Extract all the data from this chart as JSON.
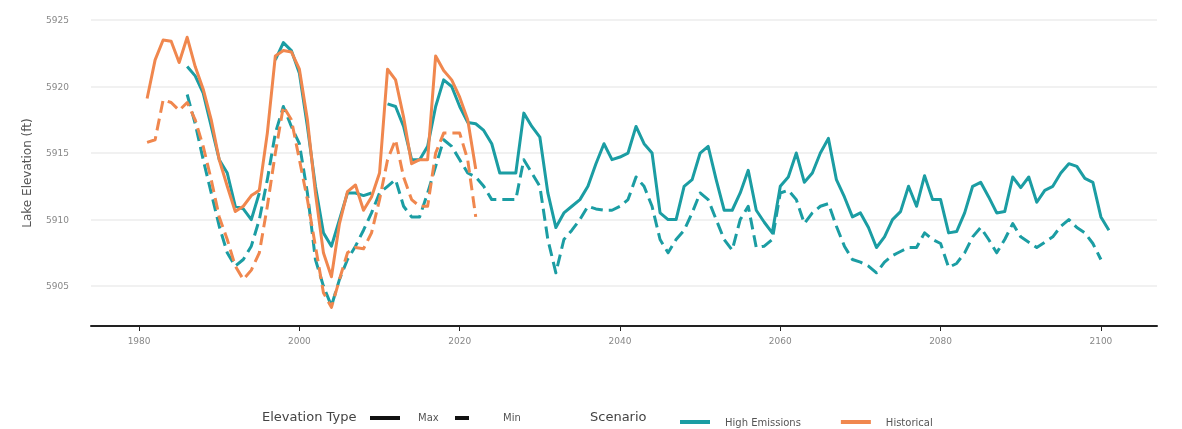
{
  "chart_data": {
    "type": "line",
    "xlabel": null,
    "ylabel": "Lake Elevation (ft)",
    "xlim": [
      1974,
      2107
    ],
    "xticks": [
      1980,
      2000,
      2020,
      2040,
      2060,
      2080,
      2100
    ],
    "ylim": [
      5902,
      5925
    ],
    "yticks": [
      5905,
      5910,
      5915,
      5920,
      5925
    ],
    "grid": "y",
    "legend": "bottom",
    "legend_title": "Scenario",
    "marker": "none",
    "annotations": [
      "Elevation Type",
      "Max",
      "Min"
    ],
    "series": [
      {
        "name": "High Emissions",
        "color": "#1b9da3",
        "line_style": "solid",
        "x": [
          1986,
          1987,
          1988,
          1989,
          1990,
          1991,
          1992,
          1993,
          1994,
          1995,
          1996,
          1997,
          1998,
          1999,
          2000,
          2001,
          2002,
          2003,
          2004,
          2005,
          2006,
          2007,
          2008,
          2009,
          2010,
          2011,
          2012,
          2013,
          2014,
          2015,
          2016,
          2017,
          2018,
          2019,
          2020,
          2021,
          2022,
          2023,
          2024,
          2025,
          2026,
          2027,
          2028,
          2029,
          2030,
          2031,
          2032,
          2033,
          2034,
          2035,
          2036,
          2037,
          2038,
          2039,
          2040,
          2041,
          2042,
          2043,
          2044,
          2045,
          2046,
          2047,
          2048,
          2049,
          2050,
          2051,
          2052,
          2053,
          2054,
          2055,
          2056,
          2057,
          2058,
          2059,
          2060,
          2061,
          2062,
          2063,
          2064,
          2065,
          2066,
          2067,
          2068,
          2069,
          2070,
          2071,
          2072,
          2073,
          2074,
          2075,
          2076,
          2077,
          2078,
          2079,
          2080,
          2081,
          2082,
          2083,
          2084,
          2085,
          2086,
          2087,
          2088,
          2089,
          2090,
          2091,
          2092,
          2093,
          2094,
          2095,
          2096,
          2097,
          2098,
          2099,
          2100,
          2101
        ],
        "values": [
          5921.5,
          5920.8,
          5919.5,
          5917,
          5914.5,
          5913.5,
          5911,
          5910.8,
          5910,
          5912,
          null,
          5922,
          5923.3,
          5922.7,
          5921,
          5917,
          5912.5,
          5909,
          5908,
          5910,
          5912,
          5912,
          5911.8,
          5912,
          null,
          5918.7,
          5918.5,
          5917,
          5914.5,
          5914.5,
          5915.5,
          5918.5,
          5920.5,
          5920,
          5918.5,
          5917.3,
          5917.2,
          5916.7,
          5915.7,
          5913.5,
          5913.5,
          5913.5,
          5918,
          5917,
          5916.2,
          5912,
          5909.4,
          5910.5,
          5911,
          5911.5,
          5912.5,
          5914.2,
          5915.7,
          5914.5,
          5914.7,
          5915,
          5917,
          5915.7,
          5915,
          5910.5,
          5910,
          5910,
          5912.5,
          5913,
          5915,
          5915.5,
          5913,
          5910.7,
          5910.7,
          5912,
          5913.7,
          5910.7,
          5909.8,
          5909,
          5912.5,
          5913.2,
          5915,
          5912.8,
          5913.5,
          5915,
          5916.1,
          5913,
          5911.7,
          5910.2,
          5910.5,
          5909.4,
          5907.9,
          5908.7,
          5910,
          5910.6,
          5912.5,
          5911,
          5913.3,
          5911.5,
          5911.5,
          5909,
          5909.1,
          5910.5,
          5912.5,
          5912.8,
          5911.7,
          5910.5,
          5910.6,
          5913.2,
          5912.4,
          5913.2,
          5911.3,
          5912.2,
          5912.5,
          5913.5,
          5914.2,
          5914,
          5913.1,
          5912.8,
          5910.2,
          5909.2
        ]
      },
      {
        "color": "#1b9da3",
        "line_style": "dashed",
        "x": [
          1986,
          1987,
          1988,
          1989,
          1990,
          1991,
          1992,
          1993,
          1994,
          1995,
          1996,
          1997,
          1998,
          1999,
          2000,
          2001,
          2002,
          2003,
          2004,
          2005,
          2006,
          2007,
          2008,
          2009,
          2010,
          2011,
          2012,
          2013,
          2014,
          2015,
          2016,
          2017,
          2018,
          2019,
          2020,
          2021,
          2022,
          2023,
          2024,
          2025,
          2026,
          2027,
          2028,
          2029,
          2030,
          2031,
          2032,
          2033,
          2034,
          2035,
          2036,
          2037,
          2038,
          2039,
          2040,
          2041,
          2042,
          2043,
          2044,
          2045,
          2046,
          2047,
          2048,
          2049,
          2050,
          2051,
          2052,
          2053,
          2054,
          2055,
          2056,
          2057,
          2058,
          2059,
          2060,
          2061,
          2062,
          2063,
          2064,
          2065,
          2066,
          2067,
          2068,
          2069,
          2070,
          2071,
          2072,
          2073,
          2074,
          2075,
          2076,
          2077,
          2078,
          2079,
          2080,
          2081,
          2082,
          2083,
          2084,
          2085,
          2086,
          2087,
          2088,
          2089,
          2090,
          2091,
          2092,
          2093,
          2094,
          2095,
          2096,
          2097,
          2098,
          2099,
          2100
        ],
        "values": [
          5919.4,
          5917.2,
          5914.5,
          5912,
          5909.5,
          5907.5,
          5906.5,
          5907,
          5908,
          5910,
          5913,
          5916.5,
          5918.5,
          5917,
          5915.7,
          5912,
          5907,
          5905,
          5903.5,
          5905.5,
          5907,
          5908,
          5909.2,
          5910.5,
          5912,
          5912.5,
          5913,
          5911,
          5910.2,
          5910.2,
          5912,
          5914,
          5916,
          5915.5,
          5914.5,
          5913.5,
          5913.2,
          5912.5,
          5911.5,
          5911.5,
          5911.5,
          5911.5,
          5914.5,
          5913.5,
          5912.5,
          5908.5,
          5906,
          5908.5,
          5909.2,
          5910,
          5911,
          5910.8,
          5910.7,
          5910.7,
          5911,
          5911.5,
          5913.2,
          5912.5,
          5911,
          5908.5,
          5907.5,
          5908.5,
          5909.2,
          5910.5,
          5912,
          5911.5,
          5910,
          5908.5,
          5907.7,
          5910,
          5911,
          5907.9,
          5908,
          5908.5,
          5912,
          5912.2,
          5911.5,
          5909.7,
          5910.5,
          5911,
          5911.2,
          5909.5,
          5908,
          5907,
          5906.8,
          5906.5,
          5906,
          5906.8,
          5907.3,
          5907.6,
          5907.9,
          5907.9,
          5909,
          5908.5,
          5908.2,
          5906.4,
          5906.7,
          5907.5,
          5908.7,
          5909.4,
          5908.5,
          5907.5,
          5908.5,
          5909.7,
          5908.7,
          5908.3,
          5907.9,
          5908.3,
          5908.7,
          5909.5,
          5910,
          5909.4,
          5909,
          5908.2,
          5907
        ]
      },
      {
        "name": "Historical",
        "color": "#f0874e",
        "line_style": "solid",
        "x": [
          1981,
          1982,
          1983,
          1984,
          1985,
          1986,
          1987,
          1988,
          1989,
          1990,
          1991,
          1992,
          1993,
          1994,
          1995,
          1996,
          1997,
          1998,
          1999,
          2000,
          2001,
          2002,
          2003,
          2004,
          2005,
          2006,
          2007,
          2008,
          2009,
          2010,
          2011,
          2012,
          2013,
          2014,
          2015,
          2016,
          2017,
          2018,
          2019,
          2020,
          2021,
          2022
        ],
        "values": [
          5919.1,
          5922,
          5923.5,
          5923.4,
          5921.8,
          5923.7,
          5921.5,
          5919.8,
          5917.5,
          5914.5,
          5912.5,
          5910.6,
          5911,
          5911.8,
          5912.2,
          5916.5,
          5922.3,
          5922.7,
          5922.6,
          5921.3,
          5917.5,
          5912,
          5907.5,
          5905.7,
          5909.7,
          5912.1,
          5912.6,
          5910.7,
          5911.7,
          5913.5,
          5921.3,
          5920.5,
          5917.7,
          5914.2,
          5914.5,
          5914.5,
          5922.3,
          5921.2,
          5920.5,
          5919.2,
          5917.5,
          5913.8
        ]
      },
      {
        "color": "#f0874e",
        "line_style": "dashed",
        "x": [
          1981,
          1982,
          1983,
          1984,
          1985,
          1986,
          1987,
          1988,
          1989,
          1990,
          1991,
          1992,
          1993,
          1994,
          1995,
          1996,
          1997,
          1998,
          1999,
          2000,
          2001,
          2002,
          2003,
          2004,
          2005,
          2006,
          2007,
          2008,
          2009,
          2010,
          2011,
          2012,
          2013,
          2014,
          2015,
          2016,
          2017,
          2018,
          2019,
          2020,
          2021,
          2022
        ],
        "values": [
          5915.8,
          5916,
          5919,
          5918.8,
          5918.2,
          5918.8,
          5917.5,
          5915.5,
          5913,
          5910.2,
          5908.5,
          5906.5,
          5905.5,
          5906.2,
          5907.5,
          5911,
          5915,
          5918.5,
          5917.5,
          5914.5,
          5911.5,
          5908,
          5904.5,
          5903.4,
          5905.5,
          5907.5,
          5907.9,
          5907.8,
          5909,
          5911.5,
          5914.5,
          5916,
          5913.2,
          5911.5,
          5911,
          5911,
          5915,
          5916.5,
          5916.5,
          5916.5,
          5914.5,
          5910.2
        ]
      }
    ]
  }
}
